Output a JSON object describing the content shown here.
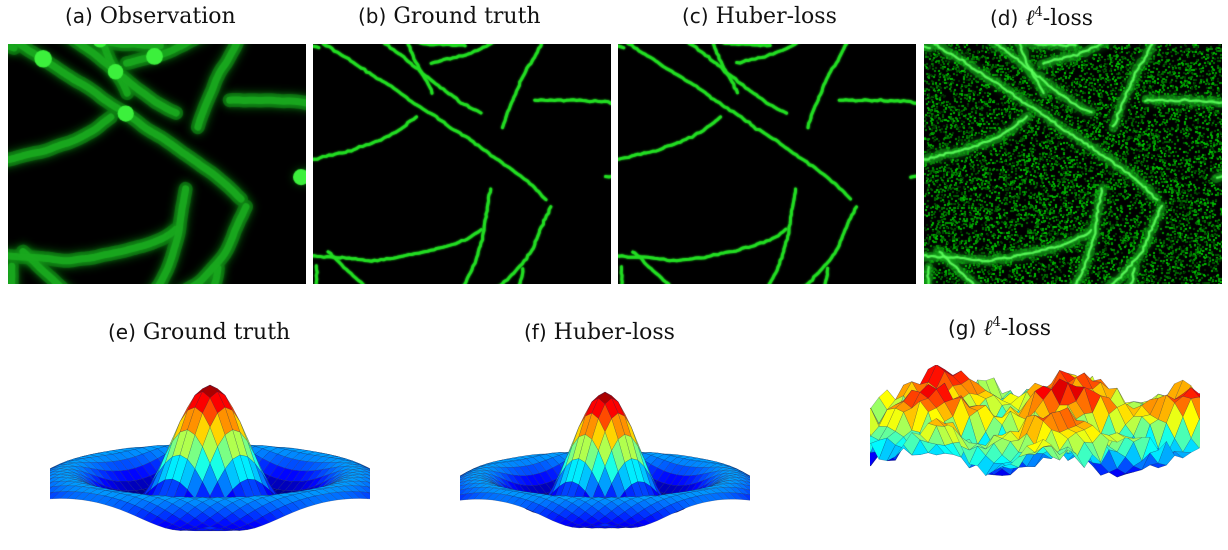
{
  "figure": {
    "panels": [
      {
        "letter": "(a)",
        "title": "Observation",
        "type": "microscopy"
      },
      {
        "letter": "(b)",
        "title": "Ground truth",
        "type": "microscopy"
      },
      {
        "letter": "(c)",
        "title": "Huber-loss",
        "type": "microscopy"
      },
      {
        "letter": "(d)",
        "title": "-loss",
        "ell": "ℓ",
        "exponent": "4",
        "type": "microscopy"
      },
      {
        "letter": "(e)",
        "title": "Ground truth",
        "type": "surface"
      },
      {
        "letter": "(f)",
        "title": "Huber-loss",
        "type": "surface"
      },
      {
        "letter": "(g)",
        "title": "-loss",
        "ell": "ℓ",
        "exponent": "4",
        "type": "surface"
      }
    ],
    "colors": {
      "microscopy_background": "#000000",
      "filament": "#22dd22",
      "surface_colormap": "jet"
    }
  }
}
